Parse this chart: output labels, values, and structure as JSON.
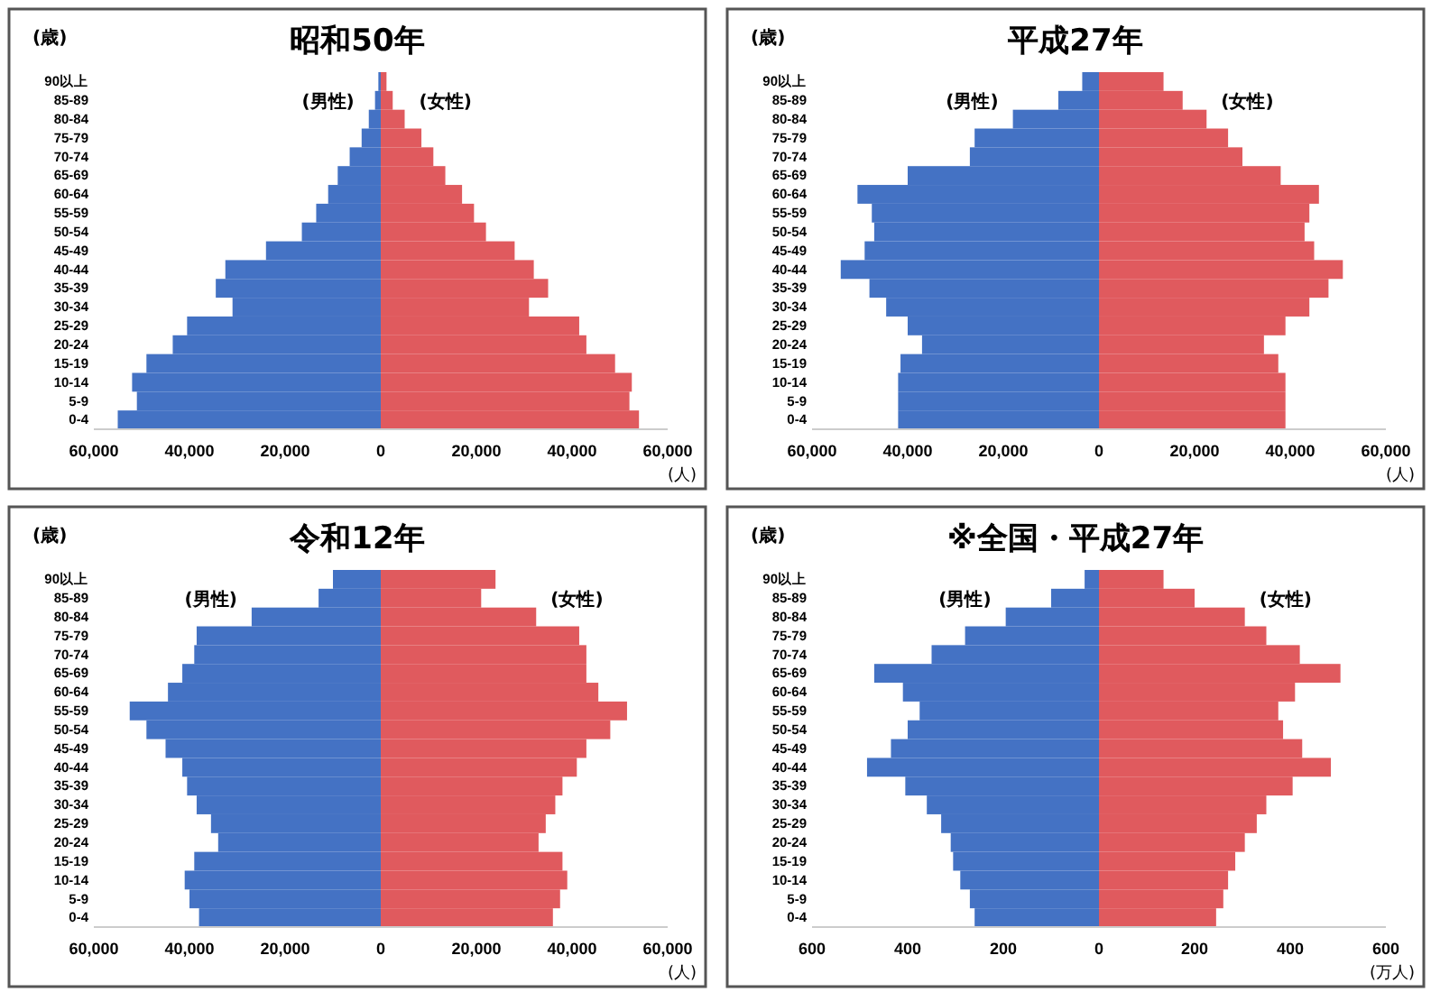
{
  "chart_data": [
    {
      "type": "bar",
      "title": "昭和50年",
      "ylabel": "(歳)",
      "orientation": "horizontal",
      "stacked": true,
      "categories": [
        "90以上",
        "85-89",
        "80-84",
        "75-79",
        "70-74",
        "65-69",
        "60-64",
        "55-59",
        "50-54",
        "45-49",
        "40-44",
        "35-39",
        "30-34",
        "25-29",
        "20-24",
        "15-19",
        "10-14",
        "5-9",
        "0-4"
      ],
      "series": [
        {
          "name": "(男性)",
          "color": "#4472c4",
          "values": [
            -500,
            -1200,
            -2500,
            -4000,
            -6500,
            -9000,
            -11000,
            -13500,
            -16500,
            -24000,
            -32500,
            -34500,
            -31000,
            -40500,
            -43500,
            -49000,
            -52000,
            -51000,
            -55000
          ]
        },
        {
          "name": "(女性)",
          "color": "#e05a5e",
          "values": [
            1200,
            2500,
            5000,
            8500,
            11000,
            13500,
            17000,
            19500,
            22000,
            28000,
            32000,
            35000,
            31000,
            41500,
            43000,
            49000,
            52500,
            52000,
            54000
          ]
        }
      ],
      "xlim": [
        -60000,
        60000
      ],
      "xticks": [
        {
          "value": -60000,
          "label": "60,000"
        },
        {
          "value": -40000,
          "label": "40,000"
        },
        {
          "value": -20000,
          "label": "20,000"
        },
        0,
        {
          "value": 20000,
          "label": "20,000"
        },
        {
          "value": 40000,
          "label": "40,000"
        },
        {
          "value": 60000,
          "label": "60,000"
        }
      ],
      "annotations": [
        "(人)"
      ]
    },
    {
      "type": "bar",
      "title": "平成27年",
      "ylabel": "(歳)",
      "orientation": "horizontal",
      "stacked": true,
      "categories": [
        "90以上",
        "85-89",
        "80-84",
        "75-79",
        "70-74",
        "65-69",
        "60-64",
        "55-59",
        "50-54",
        "45-49",
        "40-44",
        "35-39",
        "30-34",
        "25-29",
        "20-24",
        "15-19",
        "10-14",
        "5-9",
        "0-4"
      ],
      "series": [
        {
          "name": "(男性)",
          "color": "#4472c4",
          "values": [
            -3500,
            -8500,
            -18000,
            -26000,
            -27000,
            -40000,
            -50500,
            -47500,
            -47000,
            -49000,
            -54000,
            -48000,
            -44500,
            -40000,
            -37000,
            -41500,
            -42000,
            -42000,
            -42000
          ]
        },
        {
          "name": "(女性)",
          "color": "#e05a5e",
          "values": [
            13500,
            17500,
            22500,
            27000,
            30000,
            38000,
            46000,
            44000,
            43000,
            45000,
            51000,
            48000,
            44000,
            39000,
            34500,
            37500,
            39000,
            39000,
            39000
          ]
        }
      ],
      "xlim": [
        -60000,
        60000
      ],
      "xticks": [
        {
          "value": -60000,
          "label": "60,000"
        },
        {
          "value": -40000,
          "label": "40,000"
        },
        {
          "value": -20000,
          "label": "20,000"
        },
        0,
        {
          "value": 20000,
          "label": "20,000"
        },
        {
          "value": 40000,
          "label": "40,000"
        },
        {
          "value": 60000,
          "label": "60,000"
        }
      ],
      "annotations": [
        "(人)"
      ]
    },
    {
      "type": "bar",
      "title": "令和12年",
      "ylabel": "(歳)",
      "orientation": "horizontal",
      "stacked": true,
      "categories": [
        "90以上",
        "85-89",
        "80-84",
        "75-79",
        "70-74",
        "65-69",
        "60-64",
        "55-59",
        "50-54",
        "45-49",
        "40-44",
        "35-39",
        "30-34",
        "25-29",
        "20-24",
        "15-19",
        "10-14",
        "5-9",
        "0-4"
      ],
      "series": [
        {
          "name": "(男性)",
          "color": "#4472c4",
          "values": [
            -10000,
            -13000,
            -27000,
            -38500,
            -39000,
            -41500,
            -44500,
            -52500,
            -49000,
            -45000,
            -41500,
            -40500,
            -38500,
            -35500,
            -34000,
            -39000,
            -41000,
            -40000,
            -38000
          ]
        },
        {
          "name": "(女性)",
          "color": "#e05a5e",
          "values": [
            24000,
            21000,
            32500,
            41500,
            43000,
            43000,
            45500,
            51500,
            48000,
            43000,
            41000,
            38000,
            36500,
            34500,
            33000,
            38000,
            39000,
            37500,
            36000
          ]
        }
      ],
      "xlim": [
        -60000,
        60000
      ],
      "xticks": [
        {
          "value": -60000,
          "label": "60,000"
        },
        {
          "value": -40000,
          "label": "40,000"
        },
        {
          "value": -20000,
          "label": "20,000"
        },
        0,
        {
          "value": 20000,
          "label": "20,000"
        },
        {
          "value": 40000,
          "label": "40,000"
        },
        {
          "value": 60000,
          "label": "60,000"
        }
      ],
      "annotations": [
        "(人)"
      ]
    },
    {
      "type": "bar",
      "title": "※全国・平成27年",
      "ylabel": "(歳)",
      "orientation": "horizontal",
      "stacked": true,
      "categories": [
        "90以上",
        "85-89",
        "80-84",
        "75-79",
        "70-74",
        "65-69",
        "60-64",
        "55-59",
        "50-54",
        "45-49",
        "40-44",
        "35-39",
        "30-34",
        "25-29",
        "20-24",
        "15-19",
        "10-14",
        "5-9",
        "0-4"
      ],
      "series": [
        {
          "name": "(男性)",
          "color": "#4472c4",
          "values": [
            -30,
            -100,
            -195,
            -280,
            -350,
            -470,
            -410,
            -375,
            -400,
            -435,
            -485,
            -405,
            -360,
            -330,
            -310,
            -305,
            -290,
            -270,
            -260
          ]
        },
        {
          "name": "(女性)",
          "color": "#e05a5e",
          "values": [
            135,
            200,
            305,
            350,
            420,
            505,
            410,
            375,
            385,
            425,
            485,
            405,
            350,
            330,
            305,
            285,
            270,
            260,
            245
          ]
        }
      ],
      "xlim": [
        -600,
        600
      ],
      "xticks": [
        {
          "value": -600,
          "label": "600"
        },
        {
          "value": -400,
          "label": "400"
        },
        {
          "value": -200,
          "label": "200"
        },
        0,
        200,
        400,
        600
      ],
      "annotations": [
        "(万人)"
      ]
    }
  ]
}
